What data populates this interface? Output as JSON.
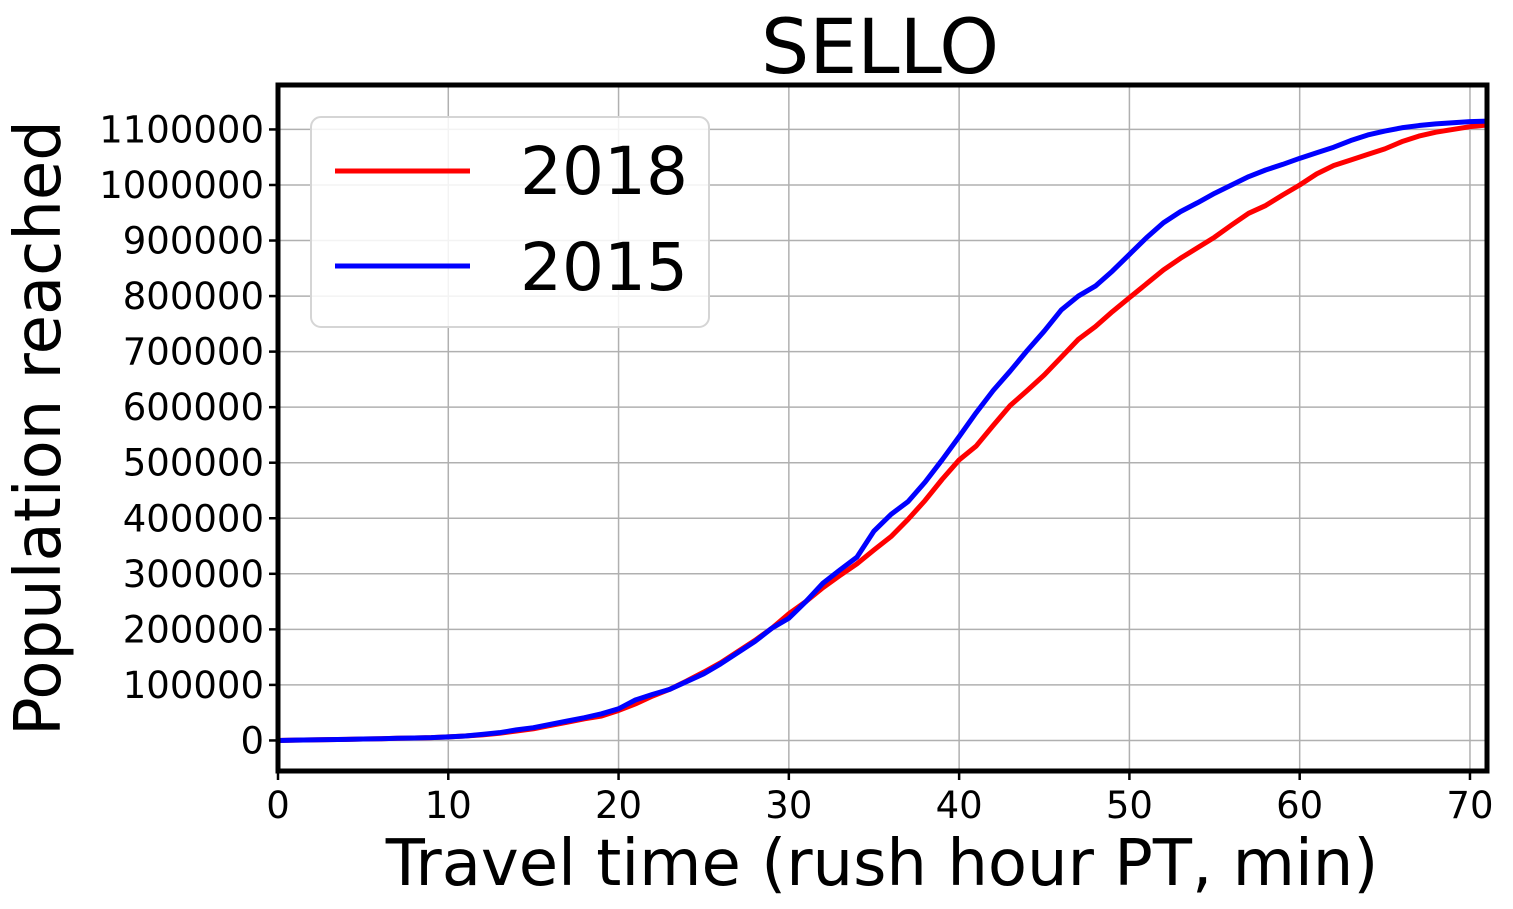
{
  "chart_data": {
    "type": "line",
    "title": "SELLO",
    "xlabel": "Travel time (rush hour PT, min)",
    "ylabel": "Population reached",
    "xlim": [
      0,
      71
    ],
    "ylim": [
      -55000,
      1180000
    ],
    "xticks": [
      0,
      10,
      20,
      30,
      40,
      50,
      60,
      70
    ],
    "yticks": [
      0,
      100000,
      200000,
      300000,
      400000,
      500000,
      600000,
      700000,
      800000,
      900000,
      1000000,
      1100000
    ],
    "grid": true,
    "legend_position": "upper-left",
    "x": [
      0,
      1,
      2,
      3,
      4,
      5,
      6,
      7,
      8,
      9,
      10,
      11,
      12,
      13,
      14,
      15,
      16,
      17,
      18,
      19,
      20,
      21,
      22,
      23,
      24,
      25,
      26,
      27,
      28,
      29,
      30,
      31,
      32,
      33,
      34,
      35,
      36,
      37,
      38,
      39,
      40,
      41,
      42,
      43,
      44,
      45,
      46,
      47,
      48,
      49,
      50,
      51,
      52,
      53,
      54,
      55,
      56,
      57,
      58,
      59,
      60,
      61,
      62,
      63,
      64,
      65,
      66,
      67,
      68,
      69,
      70,
      71
    ],
    "series": [
      {
        "name": "2018",
        "color": "#ff0000",
        "values": [
          0,
          500,
          1000,
          1500,
          2000,
          2500,
          3000,
          4000,
          4500,
          5000,
          6500,
          8000,
          10000,
          13000,
          17000,
          21000,
          27000,
          33000,
          39000,
          44000,
          54000,
          66000,
          80000,
          92000,
          107000,
          123000,
          140000,
          160000,
          180000,
          202000,
          228000,
          250000,
          275000,
          297000,
          318000,
          343000,
          367000,
          398000,
          432000,
          470000,
          505000,
          530000,
          567000,
          603000,
          630000,
          658000,
          690000,
          722000,
          745000,
          772000,
          797000,
          822000,
          847000,
          868000,
          887000,
          906000,
          928000,
          949000,
          963000,
          982000,
          1000000,
          1020000,
          1035000,
          1045000,
          1055000,
          1065000,
          1078000,
          1088000,
          1095000,
          1100000,
          1105000,
          1108000
        ]
      },
      {
        "name": "2015",
        "color": "#0000ff",
        "values": [
          0,
          500,
          1000,
          1500,
          2000,
          2500,
          3000,
          4000,
          4500,
          5000,
          6500,
          8000,
          11000,
          14000,
          19000,
          23000,
          29000,
          35000,
          41000,
          48000,
          57000,
          73000,
          83000,
          92000,
          106000,
          120000,
          138000,
          158000,
          178000,
          202000,
          220000,
          250000,
          283000,
          307000,
          330000,
          377000,
          407000,
          430000,
          465000,
          505000,
          547000,
          590000,
          630000,
          665000,
          702000,
          737000,
          775000,
          800000,
          818000,
          845000,
          875000,
          905000,
          932000,
          952000,
          968000,
          985000,
          1000000,
          1015000,
          1027000,
          1037000,
          1048000,
          1058000,
          1068000,
          1080000,
          1090000,
          1097000,
          1103000,
          1107000,
          1110000,
          1112000,
          1114000,
          1115000
        ]
      }
    ]
  }
}
